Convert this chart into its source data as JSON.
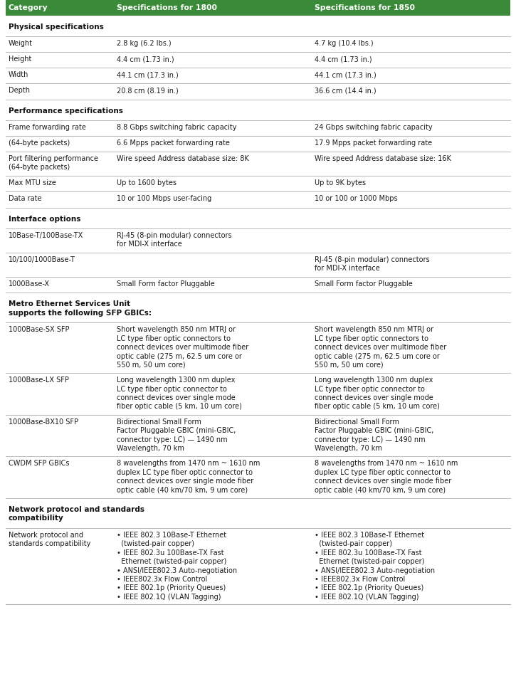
{
  "header": [
    "Category",
    "Specifications for 1800",
    "Specifications for 1850"
  ],
  "header_bg": "#3a8a3a",
  "header_text_color": "#ffffff",
  "divider_color": "#b0b0b0",
  "text_color": "#1a1a1a",
  "section_color": "#111111",
  "bg_color": "#ffffff",
  "rows": [
    {
      "type": "section",
      "col0": "Physical specifications",
      "col1": "",
      "col2": ""
    },
    {
      "type": "data",
      "col0": "Weight",
      "col1": "2.8 kg (6.2 lbs.)",
      "col2": "4.7 kg (10.4 lbs.)"
    },
    {
      "type": "data",
      "col0": "Height",
      "col1": "4.4 cm (1.73 in.)",
      "col2": "4.4 cm (1.73 in.)"
    },
    {
      "type": "data",
      "col0": "Width",
      "col1": "44.1 cm (17.3 in.)",
      "col2": "44.1 cm (17.3 in.)"
    },
    {
      "type": "data",
      "col0": "Depth",
      "col1": "20.8 cm (8.19 in.)",
      "col2": "36.6 cm (14.4 in.)"
    },
    {
      "type": "section",
      "col0": "Performance specifications",
      "col1": "",
      "col2": ""
    },
    {
      "type": "data",
      "col0": "Frame forwarding rate",
      "col1": "8.8 Gbps switching fabric capacity",
      "col2": "24 Gbps switching fabric capacity"
    },
    {
      "type": "data",
      "col0": "(64-byte packets)",
      "col1": "6.6 Mpps packet forwarding rate",
      "col2": "17.9 Mpps packet forwarding rate"
    },
    {
      "type": "data",
      "col0": "Port filtering performance\n(64-byte packets)",
      "col1": "Wire speed Address database size: 8K",
      "col2": "Wire speed Address database size: 16K"
    },
    {
      "type": "data",
      "col0": "Max MTU size",
      "col1": "Up to 1600 bytes",
      "col2": "Up to 9K bytes"
    },
    {
      "type": "data",
      "col0": "Data rate",
      "col1": "10 or 100 Mbps user-facing",
      "col2": "10 or 100 or 1000 Mbps"
    },
    {
      "type": "section",
      "col0": "Interface options",
      "col1": "",
      "col2": ""
    },
    {
      "type": "data",
      "col0": "10Base-T/100Base-TX",
      "col1": "RJ-45 (8-pin modular) connectors\nfor MDI-X interface",
      "col2": ""
    },
    {
      "type": "data",
      "col0": "10/100/1000Base-T",
      "col1": "",
      "col2": "RJ-45 (8-pin modular) connectors\nfor MDI-X interface"
    },
    {
      "type": "data",
      "col0": "1000Base-X",
      "col1": "Small Form factor Pluggable",
      "col2": "Small Form factor Pluggable"
    },
    {
      "type": "section",
      "col0": "Metro Ethernet Services Unit\nsupports the following SFP GBICs:",
      "col1": "",
      "col2": ""
    },
    {
      "type": "data",
      "col0": "1000Base-SX SFP",
      "col1": "Short wavelength 850 nm MTRJ or\nLC type fiber optic connectors to\nconnect devices over multimode fiber\noptic cable (275 m, 62.5 um core or\n550 m, 50 um core)",
      "col2": "Short wavelength 850 nm MTRJ or\nLC type fiber optic connectors to\nconnect devices over multimode fiber\noptic cable (275 m, 62.5 um core or\n550 m, 50 um core)"
    },
    {
      "type": "data",
      "col0": "1000Base-LX SFP",
      "col1": "Long wavelength 1300 nm duplex\nLC type fiber optic connector to\nconnect devices over single mode\nfiber optic cable (5 km, 10 um core)",
      "col2": "Long wavelength 1300 nm duplex\nLC type fiber optic connector to\nconnect devices over single mode\nfiber optic cable (5 km, 10 um core)"
    },
    {
      "type": "data",
      "col0": "1000Base-BX10 SFP",
      "col1": "Bidirectional Small Form\nFactor Pluggable GBIC (mini-GBIC,\nconnector type: LC) — 1490 nm\nWavelength, 70 km",
      "col2": "Bidirectional Small Form\nFactor Pluggable GBIC (mini-GBIC,\nconnector type: LC) — 1490 nm\nWavelength, 70 km"
    },
    {
      "type": "data",
      "col0": "CWDM SFP GBICs",
      "col1": "8 wavelengths from 1470 nm ~ 1610 nm\nduplex LC type fiber optic connector to\nconnect devices over single mode fiber\noptic cable (40 km/70 km, 9 um core)",
      "col2": "8 wavelengths from 1470 nm ~ 1610 nm\nduplex LC type fiber optic connector to\nconnect devices over single mode fiber\noptic cable (40 km/70 km, 9 um core)"
    },
    {
      "type": "section",
      "col0": "Network protocol and standards\ncompatibility",
      "col1": "",
      "col2": ""
    },
    {
      "type": "data",
      "col0": "Network protocol and\nstandards compatibility",
      "col1": "• IEEE 802.3 10Base-T Ethernet\n  (twisted-pair copper)\n• IEEE 802.3u 100Base-TX Fast\n  Ethernet (twisted-pair copper)\n• ANSI/IEEE802.3 Auto-negotiation\n• IEEE802.3x Flow Control\n• IEEE 802.1p (Priority Queues)\n• IEEE 802.1Q (VLAN Tagging)",
      "col2": "• IEEE 802.3 10Base-T Ethernet\n  (twisted-pair copper)\n• IEEE 802.3u 100Base-TX Fast\n  Ethernet (twisted-pair copper)\n• ANSI/IEEE802.3 Auto-negotiation\n• IEEE802.3x Flow Control\n• IEEE 802.1p (Priority Queues)\n• IEEE 802.1Q (VLAN Tagging)"
    }
  ]
}
